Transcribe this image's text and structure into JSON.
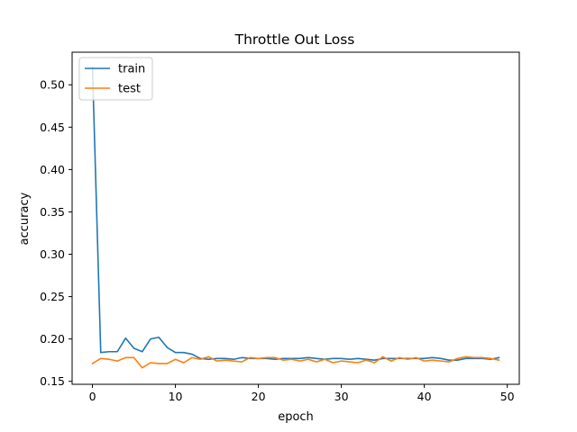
{
  "chart_data": {
    "type": "line",
    "title": "Throttle Out Loss",
    "xlabel": "epoch",
    "ylabel": "accuracy",
    "xlim": [
      -2.45,
      51.45
    ],
    "ylim": [
      0.1465,
      0.5385
    ],
    "xticks": [
      0,
      10,
      20,
      30,
      40,
      50
    ],
    "yticks": [
      0.15,
      0.2,
      0.25,
      0.3,
      0.35,
      0.4,
      0.45,
      0.5
    ],
    "ytick_labels": [
      "0.15",
      "0.20",
      "0.25",
      "0.30",
      "0.35",
      "0.40",
      "0.45",
      "0.50"
    ],
    "grid": false,
    "legend_position": "upper-left",
    "x": [
      0,
      1,
      2,
      3,
      4,
      5,
      6,
      7,
      8,
      9,
      10,
      11,
      12,
      13,
      14,
      15,
      16,
      17,
      18,
      19,
      20,
      21,
      22,
      23,
      24,
      25,
      26,
      27,
      28,
      29,
      30,
      31,
      32,
      33,
      34,
      35,
      36,
      37,
      38,
      39,
      40,
      41,
      42,
      43,
      44,
      45,
      46,
      47,
      48,
      49
    ],
    "series": [
      {
        "name": "train",
        "color": "#1f77b4",
        "values": [
          0.521,
          0.184,
          0.185,
          0.185,
          0.201,
          0.189,
          0.185,
          0.2,
          0.202,
          0.19,
          0.184,
          0.184,
          0.182,
          0.177,
          0.176,
          0.177,
          0.177,
          0.176,
          0.178,
          0.177,
          0.177,
          0.177,
          0.176,
          0.177,
          0.177,
          0.177,
          0.178,
          0.177,
          0.176,
          0.177,
          0.177,
          0.176,
          0.177,
          0.176,
          0.175,
          0.177,
          0.177,
          0.177,
          0.177,
          0.177,
          0.177,
          0.178,
          0.177,
          0.175,
          0.175,
          0.177,
          0.177,
          0.177,
          0.176,
          0.178
        ]
      },
      {
        "name": "test",
        "color": "#ff7f0e",
        "values": [
          0.171,
          0.177,
          0.176,
          0.174,
          0.178,
          0.178,
          0.166,
          0.172,
          0.171,
          0.171,
          0.176,
          0.172,
          0.178,
          0.176,
          0.179,
          0.174,
          0.175,
          0.174,
          0.173,
          0.178,
          0.177,
          0.178,
          0.178,
          0.175,
          0.176,
          0.174,
          0.176,
          0.173,
          0.176,
          0.172,
          0.174,
          0.173,
          0.172,
          0.175,
          0.172,
          0.179,
          0.174,
          0.178,
          0.176,
          0.178,
          0.174,
          0.175,
          0.174,
          0.173,
          0.177,
          0.179,
          0.178,
          0.178,
          0.177,
          0.175
        ]
      }
    ]
  }
}
